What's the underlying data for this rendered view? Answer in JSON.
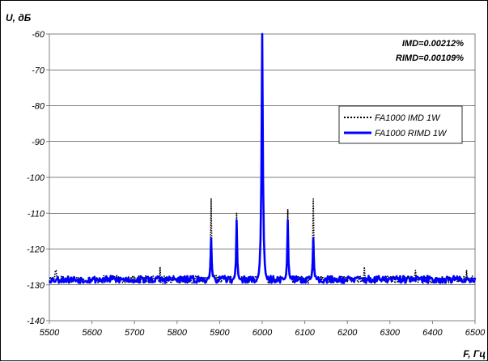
{
  "chart_data": {
    "type": "line",
    "ylabel": "U, дБ",
    "xlabel": "F, Гц",
    "xlim": [
      5500,
      6500
    ],
    "ylim": [
      -140,
      -60
    ],
    "x_ticks": [
      5500,
      5600,
      5700,
      5800,
      5900,
      6000,
      6100,
      6200,
      6300,
      6400,
      6500
    ],
    "y_ticks": [
      -60,
      -70,
      -80,
      -90,
      -100,
      -110,
      -120,
      -130,
      -140
    ],
    "grid": "horizontal",
    "legend_position": "right",
    "annotations": [
      "IMD=0.00212%",
      "RIMD=0.00109%"
    ],
    "noise_floor": -128.5,
    "series": [
      {
        "name": "FA1000 IMD 1W",
        "style": "dotted",
        "color": "#000000",
        "peaks": [
          {
            "x": 5880,
            "y": -106
          },
          {
            "x": 5940,
            "y": -110
          },
          {
            "x": 6000,
            "y": -60
          },
          {
            "x": 6060,
            "y": -109
          },
          {
            "x": 6120,
            "y": -106
          }
        ],
        "spurs": [
          {
            "x": 5515,
            "y": -126
          },
          {
            "x": 5760,
            "y": -125
          },
          {
            "x": 6240,
            "y": -125
          },
          {
            "x": 6360,
            "y": -126
          },
          {
            "x": 6480,
            "y": -126
          }
        ]
      },
      {
        "name": "FA1000 RIMD 1W",
        "style": "solid",
        "color": "#0000ff",
        "peaks": [
          {
            "x": 5880,
            "y": -117
          },
          {
            "x": 5940,
            "y": -112
          },
          {
            "x": 6000,
            "y": -60
          },
          {
            "x": 6060,
            "y": -112
          },
          {
            "x": 6120,
            "y": -117
          }
        ],
        "spurs": []
      }
    ]
  }
}
